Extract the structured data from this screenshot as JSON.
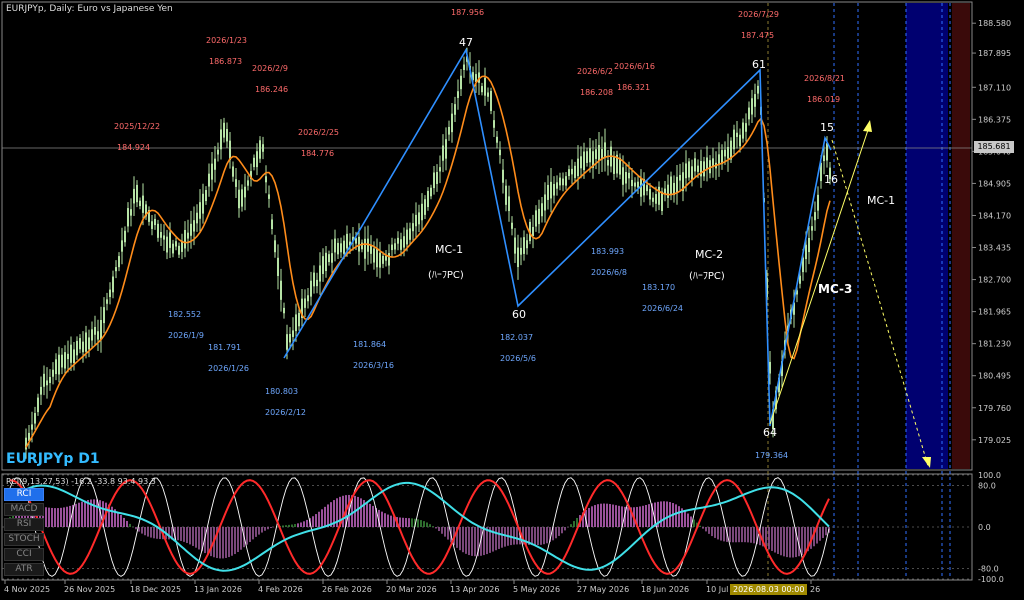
{
  "header": "EURJPYp, Daily:  Euro vs Japanese Yen",
  "symbol_label": "EURJPYp D1",
  "rci_header": "RCI(9,13,27,53) -16.2 -33.8 93.4 93.3",
  "indicator_tabs": [
    "RCI",
    "MACD",
    "RSI",
    "STOCH",
    "CCI",
    "ATR"
  ],
  "active_tab": "RCI",
  "current_price": "185.681",
  "crosshair_date": "2026.08.03 00:00",
  "price_axis": [
    "188.580",
    "187.895",
    "187.110",
    "186.375",
    "185.640",
    "184.905",
    "184.170",
    "183.435",
    "182.700",
    "181.965",
    "181.230",
    "180.495",
    "179.760",
    "179.025"
  ],
  "rci_axis": [
    "100.0",
    "80.0",
    "0.0",
    "-80.0",
    "-100.0"
  ],
  "time_axis": [
    "4 Nov 2025",
    "26 Nov 2025",
    "18 Dec 2025",
    "13 Jan 2026",
    "4 Feb 2026",
    "26 Feb 2026",
    "20 Mar 2026",
    "13 Apr 2026",
    "5 May 2026",
    "27 May 2026",
    "18 Jun 2026",
    "10 Jul",
    "26"
  ],
  "pivot_labels": {
    "high": [
      {
        "date": "2025/12/22",
        "price": "184.924"
      },
      {
        "date": "2026/1/23",
        "price": "186.873"
      },
      {
        "date": "2026/2/9",
        "price": "186.246"
      },
      {
        "date": "2026/2/25",
        "price": "184.776"
      },
      {
        "date": "",
        "price": "187.956"
      },
      {
        "date": "2026/6/2",
        "price": "186.208"
      },
      {
        "date": "2026/6/16",
        "price": "186.321"
      },
      {
        "date": "2026/7/29",
        "price": "187.475"
      },
      {
        "date": "2026/8/21",
        "price": "186.019"
      }
    ],
    "low": [
      {
        "date": "2026/1/9",
        "price": "182.552"
      },
      {
        "date": "2026/1/26",
        "price": "181.791"
      },
      {
        "date": "2026/2/12",
        "price": "180.803"
      },
      {
        "date": "2026/3/16",
        "price": "181.864"
      },
      {
        "date": "2026/5/6",
        "price": "182.037"
      },
      {
        "date": "2026/6/8",
        "price": "183.993"
      },
      {
        "date": "2026/6/24",
        "price": "183.170"
      },
      {
        "date": "",
        "price": "179.364"
      }
    ]
  },
  "wave_counts": [
    "47",
    "60",
    "61",
    "64",
    "15",
    "16"
  ],
  "annotations": {
    "mc1_left": "MC-1",
    "mc1_left_sub": "(ﾊｰﾌPC)",
    "mc2": "MC-2",
    "mc2_sub": "(ﾊｰﾌPC)",
    "mc1_right": "MC-1",
    "mc3": "MC-3"
  },
  "colors": {
    "candles": "#b6e3a6",
    "ma": "#ff8c1a",
    "zigzag": "#2f8fff",
    "high_label": "#ff6b6b",
    "low_label": "#6fa8ff",
    "rci_red": "#ff2a2a",
    "rci_white": "#ffffff",
    "rci_cyan": "#40e0e8",
    "trend": "#ffff66",
    "future_zone": "#000070"
  },
  "chart_data": {
    "type": "candlestick",
    "title": "EURJPYp, Daily:  Euro vs Japanese Yen",
    "ylim": [
      178.6,
      188.9
    ],
    "swing_points": [
      {
        "label": "47",
        "price": 187.956
      },
      {
        "label": "60",
        "price": 182.037
      },
      {
        "label": "61",
        "price": 187.475
      },
      {
        "label": "64",
        "price": 179.364
      },
      {
        "label": "15",
        "price": 186.019
      }
    ],
    "rci_ylim": [
      -100,
      100
    ]
  }
}
